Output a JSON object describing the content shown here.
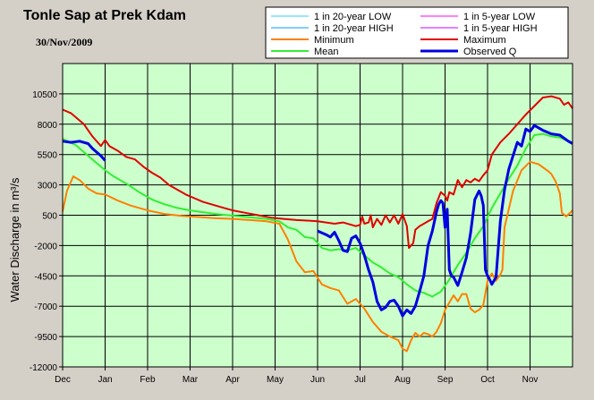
{
  "chart_data": {
    "type": "line",
    "title": "Tonle Sap at Prek Kdam",
    "subtitle": "30/Nov/2009",
    "ylabel": "Water Discharge in m³/s",
    "xlabel": "",
    "x_axis": "month index (Dec=0 … Nov=11, end=12)",
    "x_ticks": [
      "Dec",
      "Jan",
      "Feb",
      "Mar",
      "Apr",
      "May",
      "Jun",
      "Jul",
      "Aug",
      "Sep",
      "Oct",
      "Nov"
    ],
    "ylim": [
      -12000,
      13000
    ],
    "y_ticks": [
      "10500",
      "8000",
      "5500",
      "3000",
      "500",
      "-2000",
      "-4500",
      "-7000",
      "-9500",
      "-12000"
    ],
    "grid": true,
    "legend_position": "top-right",
    "colors": {
      "plot_bg": "#ccffcc",
      "page_bg": "#d4d0c8",
      "cyan": "#33ccff",
      "blue_high": "#0099ff",
      "magenta": "#ff00ff",
      "purple_high": "#cc00ff",
      "orange": "#ff7f00",
      "red": "#e00000",
      "green": "#33ee33",
      "observed": "#0000e0"
    },
    "legend": [
      {
        "label": "1 in 20-year LOW",
        "color": "#33ccff",
        "width": 1
      },
      {
        "label": "1 in 5-year LOW",
        "color": "#ff00ff",
        "width": 1
      },
      {
        "label": "1 in 20-year HIGH",
        "color": "#0099ff",
        "width": 1
      },
      {
        "label": "1 in 5-year HIGH",
        "color": "#cc00ff",
        "width": 1
      },
      {
        "label": "Minimum",
        "color": "#ff7f00",
        "width": 2
      },
      {
        "label": "Maximum",
        "color": "#e00000",
        "width": 2
      },
      {
        "label": "Mean",
        "color": "#33ee33",
        "width": 2
      },
      {
        "label": "Observed Q",
        "color": "#0000e0",
        "width": 3
      }
    ],
    "series": [
      {
        "name": "Maximum",
        "color": "#e00000",
        "width": 2,
        "points": [
          [
            0,
            9200
          ],
          [
            0.2,
            8900
          ],
          [
            0.5,
            8000
          ],
          [
            0.7,
            7000
          ],
          [
            0.9,
            6200
          ],
          [
            1.0,
            6700
          ],
          [
            1.1,
            6200
          ],
          [
            1.3,
            5800
          ],
          [
            1.5,
            5300
          ],
          [
            1.7,
            5100
          ],
          [
            1.9,
            4500
          ],
          [
            2.1,
            4000
          ],
          [
            2.3,
            3600
          ],
          [
            2.5,
            3000
          ],
          [
            2.7,
            2600
          ],
          [
            2.9,
            2200
          ],
          [
            3.1,
            1900
          ],
          [
            3.3,
            1600
          ],
          [
            3.5,
            1400
          ],
          [
            3.8,
            1100
          ],
          [
            4.0,
            900
          ],
          [
            4.3,
            700
          ],
          [
            4.6,
            500
          ],
          [
            4.9,
            300
          ],
          [
            5.2,
            200
          ],
          [
            5.5,
            100
          ],
          [
            5.8,
            50
          ],
          [
            6.0,
            0
          ],
          [
            6.2,
            -100
          ],
          [
            6.4,
            -200
          ],
          [
            6.6,
            -100
          ],
          [
            6.8,
            -300
          ],
          [
            6.9,
            -400
          ],
          [
            7.0,
            -300
          ],
          [
            7.05,
            400
          ],
          [
            7.1,
            -200
          ],
          [
            7.2,
            -100
          ],
          [
            7.25,
            500
          ],
          [
            7.3,
            -500
          ],
          [
            7.4,
            200
          ],
          [
            7.5,
            -300
          ],
          [
            7.6,
            500
          ],
          [
            7.7,
            -100
          ],
          [
            7.8,
            500
          ],
          [
            7.9,
            -200
          ],
          [
            8.0,
            600
          ],
          [
            8.1,
            -400
          ],
          [
            8.15,
            -2200
          ],
          [
            8.25,
            -1800
          ],
          [
            8.3,
            -700
          ],
          [
            8.4,
            -400
          ],
          [
            8.5,
            -200
          ],
          [
            8.6,
            0
          ],
          [
            8.7,
            200
          ],
          [
            8.8,
            1500
          ],
          [
            8.9,
            2400
          ],
          [
            9.0,
            2100
          ],
          [
            9.05,
            1700
          ],
          [
            9.1,
            2400
          ],
          [
            9.2,
            2200
          ],
          [
            9.3,
            3400
          ],
          [
            9.4,
            2800
          ],
          [
            9.5,
            3400
          ],
          [
            9.6,
            3200
          ],
          [
            9.7,
            3500
          ],
          [
            9.8,
            3300
          ],
          [
            9.9,
            3800
          ],
          [
            10.0,
            4200
          ],
          [
            10.1,
            5500
          ],
          [
            10.3,
            6500
          ],
          [
            10.5,
            7200
          ],
          [
            10.7,
            8000
          ],
          [
            10.9,
            8800
          ],
          [
            11.1,
            9500
          ],
          [
            11.3,
            10200
          ],
          [
            11.5,
            10300
          ],
          [
            11.7,
            10100
          ],
          [
            11.8,
            9600
          ],
          [
            11.9,
            9800
          ],
          [
            12.0,
            9300
          ]
        ]
      },
      {
        "name": "Minimum",
        "color": "#ff7f00",
        "width": 2,
        "points": [
          [
            0,
            800
          ],
          [
            0.1,
            2500
          ],
          [
            0.25,
            3700
          ],
          [
            0.4,
            3400
          ],
          [
            0.6,
            2700
          ],
          [
            0.8,
            2300
          ],
          [
            1.0,
            2200
          ],
          [
            1.3,
            1700
          ],
          [
            1.6,
            1300
          ],
          [
            2.0,
            900
          ],
          [
            2.4,
            600
          ],
          [
            2.8,
            450
          ],
          [
            3.2,
            350
          ],
          [
            3.6,
            250
          ],
          [
            4.0,
            200
          ],
          [
            4.4,
            100
          ],
          [
            4.8,
            0
          ],
          [
            5.1,
            -200
          ],
          [
            5.3,
            -1500
          ],
          [
            5.5,
            -3300
          ],
          [
            5.7,
            -4200
          ],
          [
            5.9,
            -4100
          ],
          [
            6.1,
            -5200
          ],
          [
            6.3,
            -5500
          ],
          [
            6.5,
            -5700
          ],
          [
            6.7,
            -6800
          ],
          [
            6.9,
            -6400
          ],
          [
            7.1,
            -7200
          ],
          [
            7.3,
            -8300
          ],
          [
            7.5,
            -9100
          ],
          [
            7.7,
            -9500
          ],
          [
            7.9,
            -9800
          ],
          [
            8.0,
            -10500
          ],
          [
            8.1,
            -10700
          ],
          [
            8.2,
            -9800
          ],
          [
            8.3,
            -9200
          ],
          [
            8.4,
            -9500
          ],
          [
            8.5,
            -9200
          ],
          [
            8.6,
            -9300
          ],
          [
            8.7,
            -9500
          ],
          [
            8.8,
            -9100
          ],
          [
            8.9,
            -8400
          ],
          [
            9.0,
            -7300
          ],
          [
            9.1,
            -6700
          ],
          [
            9.2,
            -6100
          ],
          [
            9.3,
            -6600
          ],
          [
            9.4,
            -6000
          ],
          [
            9.5,
            -6000
          ],
          [
            9.6,
            -7200
          ],
          [
            9.7,
            -7500
          ],
          [
            9.8,
            -7300
          ],
          [
            9.9,
            -6900
          ],
          [
            10.0,
            -4900
          ],
          [
            10.1,
            -4300
          ],
          [
            10.2,
            -4900
          ],
          [
            10.3,
            -4400
          ],
          [
            10.35,
            -4000
          ],
          [
            10.4,
            -500
          ],
          [
            10.6,
            2500
          ],
          [
            10.8,
            4200
          ],
          [
            11.0,
            4900
          ],
          [
            11.2,
            4700
          ],
          [
            11.4,
            4200
          ],
          [
            11.5,
            3900
          ],
          [
            11.6,
            3300
          ],
          [
            11.7,
            2300
          ],
          [
            11.75,
            700
          ],
          [
            11.85,
            400
          ],
          [
            12.0,
            900
          ]
        ]
      },
      {
        "name": "Mean",
        "color": "#33ee33",
        "width": 2,
        "points": [
          [
            0,
            6800
          ],
          [
            0.3,
            6300
          ],
          [
            0.6,
            5400
          ],
          [
            0.8,
            4800
          ],
          [
            1.0,
            4200
          ],
          [
            1.2,
            3700
          ],
          [
            1.5,
            3100
          ],
          [
            1.8,
            2400
          ],
          [
            2.1,
            1800
          ],
          [
            2.4,
            1400
          ],
          [
            2.7,
            1100
          ],
          [
            3.0,
            900
          ],
          [
            3.3,
            750
          ],
          [
            3.6,
            600
          ],
          [
            3.9,
            500
          ],
          [
            4.2,
            400
          ],
          [
            4.5,
            300
          ],
          [
            4.8,
            200
          ],
          [
            5.1,
            0
          ],
          [
            5.3,
            -500
          ],
          [
            5.5,
            -700
          ],
          [
            5.7,
            -1300
          ],
          [
            5.9,
            -1400
          ],
          [
            6.1,
            -2200
          ],
          [
            6.3,
            -2400
          ],
          [
            6.5,
            -2300
          ],
          [
            6.7,
            -2400
          ],
          [
            6.9,
            -2200
          ],
          [
            7.1,
            -2800
          ],
          [
            7.3,
            -3400
          ],
          [
            7.5,
            -3800
          ],
          [
            7.7,
            -4300
          ],
          [
            7.9,
            -4600
          ],
          [
            8.1,
            -5200
          ],
          [
            8.3,
            -5700
          ],
          [
            8.5,
            -5900
          ],
          [
            8.7,
            -6200
          ],
          [
            8.9,
            -5800
          ],
          [
            9.1,
            -4800
          ],
          [
            9.3,
            -3600
          ],
          [
            9.5,
            -2600
          ],
          [
            9.7,
            -1400
          ],
          [
            9.9,
            -400
          ],
          [
            10.1,
            1100
          ],
          [
            10.3,
            2300
          ],
          [
            10.5,
            3500
          ],
          [
            10.7,
            4600
          ],
          [
            10.9,
            6000
          ],
          [
            11.1,
            7100
          ],
          [
            11.3,
            7200
          ],
          [
            11.5,
            7000
          ],
          [
            11.7,
            6900
          ],
          [
            11.9,
            6600
          ],
          [
            12.0,
            6500
          ]
        ]
      },
      {
        "name": "Observed Q",
        "color": "#0000e0",
        "width": 3,
        "points": [
          [
            0,
            6600
          ],
          [
            0.2,
            6500
          ],
          [
            0.4,
            6600
          ],
          [
            0.6,
            6400
          ],
          [
            0.7,
            6000
          ],
          [
            0.8,
            5700
          ],
          [
            0.9,
            5400
          ],
          [
            1.0,
            5000
          ],
          [
            6.0,
            -800
          ],
          [
            6.2,
            -1100
          ],
          [
            6.3,
            -1300
          ],
          [
            6.4,
            -900
          ],
          [
            6.5,
            -1600
          ],
          [
            6.6,
            -2400
          ],
          [
            6.7,
            -2500
          ],
          [
            6.8,
            -1400
          ],
          [
            6.9,
            -1200
          ],
          [
            7.0,
            -1800
          ],
          [
            7.1,
            -2800
          ],
          [
            7.2,
            -4000
          ],
          [
            7.3,
            -5000
          ],
          [
            7.4,
            -6600
          ],
          [
            7.5,
            -7300
          ],
          [
            7.6,
            -7100
          ],
          [
            7.7,
            -6600
          ],
          [
            7.8,
            -6500
          ],
          [
            7.9,
            -7000
          ],
          [
            8.0,
            -7800
          ],
          [
            8.1,
            -7300
          ],
          [
            8.2,
            -7600
          ],
          [
            8.3,
            -7000
          ],
          [
            8.4,
            -5800
          ],
          [
            8.5,
            -4500
          ],
          [
            8.6,
            -2000
          ],
          [
            8.7,
            -800
          ],
          [
            8.8,
            800
          ],
          [
            8.85,
            1400
          ],
          [
            8.9,
            1700
          ],
          [
            8.95,
            1500
          ],
          [
            9.0,
            -500
          ],
          [
            9.05,
            1000
          ],
          [
            9.1,
            -4000
          ],
          [
            9.15,
            -4500
          ],
          [
            9.2,
            -4600
          ],
          [
            9.3,
            -5300
          ],
          [
            9.4,
            -4200
          ],
          [
            9.5,
            -3000
          ],
          [
            9.6,
            -1000
          ],
          [
            9.7,
            1800
          ],
          [
            9.8,
            2500
          ],
          [
            9.85,
            2100
          ],
          [
            9.9,
            1300
          ],
          [
            9.95,
            -4000
          ],
          [
            10.0,
            -4500
          ],
          [
            10.05,
            -4800
          ],
          [
            10.1,
            -5200
          ],
          [
            10.2,
            -4600
          ],
          [
            10.3,
            0
          ],
          [
            10.4,
            2600
          ],
          [
            10.5,
            4300
          ],
          [
            10.6,
            5400
          ],
          [
            10.7,
            6500
          ],
          [
            10.8,
            6200
          ],
          [
            10.9,
            7600
          ],
          [
            11.0,
            7400
          ],
          [
            11.1,
            7900
          ],
          [
            11.3,
            7500
          ],
          [
            11.5,
            7200
          ],
          [
            11.7,
            7100
          ],
          [
            11.9,
            6600
          ],
          [
            12.0,
            6400
          ]
        ]
      }
    ]
  }
}
